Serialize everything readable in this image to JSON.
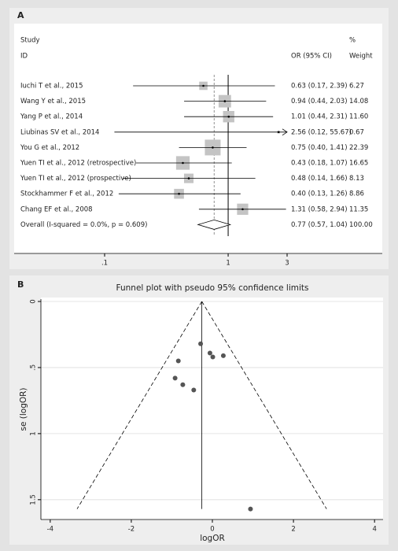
{
  "chart_data": [
    {
      "type": "forest",
      "label": "A",
      "column_headers": {
        "study": [
          "Study",
          "ID"
        ],
        "effect": "OR (95% CI)",
        "weight": [
          "%",
          "Weight"
        ]
      },
      "categories": [
        "Iuchi T et al., 2015",
        "Wang Y et al., 2015",
        "Yang P et al., 2014",
        "Liubinas SV et al., 2014",
        "You G  et al., 2012",
        "Yuen TI et al., 2012 (retrospective)",
        "Yuen TI et al., 2012 (prospective)",
        "Stockhammer F et al., 2012",
        "Chang EF et al., 2008"
      ],
      "values": [
        0.63,
        0.94,
        1.01,
        2.56,
        0.75,
        0.43,
        0.48,
        0.4,
        1.31
      ],
      "lower": [
        0.17,
        0.44,
        0.44,
        0.12,
        0.4,
        0.18,
        0.14,
        0.13,
        0.58
      ],
      "upper": [
        2.39,
        2.03,
        2.31,
        55.67,
        1.41,
        1.07,
        1.66,
        1.26,
        2.94
      ],
      "value_labels": [
        "0.63 (0.17, 2.39)",
        "0.94 (0.44, 2.03)",
        "1.01 (0.44, 2.31)",
        "2.56 (0.12, 55.67)",
        "0.75 (0.40, 1.41)",
        "0.43 (0.18, 1.07)",
        "0.48 (0.14, 1.66)",
        "0.40 (0.13, 1.26)",
        "1.31 (0.58, 2.94)"
      ],
      "weights": [
        6.27,
        14.08,
        11.6,
        0.67,
        22.39,
        16.65,
        8.13,
        8.86,
        11.35
      ],
      "weight_labels": [
        "6.27",
        "14.08",
        "11.60",
        "0.67",
        "22.39",
        "16.65",
        "8.13",
        "8.86",
        "11.35"
      ],
      "overall": {
        "label": "Overall  (I-squared = 0.0%, p = 0.609)",
        "value": 0.77,
        "lower": 0.57,
        "upper": 1.04,
        "value_label": "0.77 (0.57, 1.04)",
        "weight": 100,
        "weight_label": "100.00"
      },
      "xscale": "log",
      "xlim": [
        0.1,
        3
      ],
      "xticks": [
        {
          "value": 0.1,
          "label": ".1"
        },
        1,
        3
      ],
      "null_line": 1,
      "color": "#c4c4c4"
    },
    {
      "type": "scatter",
      "label": "B",
      "title": "Funnel plot with pseudo 95% confidence limits",
      "x_label": "logOR",
      "y_label": "se (logOR)",
      "x": [
        -0.46,
        -0.06,
        0.01,
        0.94,
        -0.29,
        -0.84,
        -0.73,
        -0.92,
        0.27
      ],
      "values": [
        0.67,
        0.39,
        0.42,
        1.57,
        0.32,
        0.45,
        0.63,
        0.58,
        0.41
      ],
      "xlim": [
        -4.23,
        4.21
      ],
      "ylim": [
        0,
        1.65
      ],
      "y_inverted": true,
      "xticks": [
        -4,
        -2,
        0,
        2,
        4
      ],
      "yticks": [
        0,
        {
          "value": 0.5,
          "label": ".5"
        },
        1,
        1.5
      ],
      "pooled_logOR": -0.26,
      "grid": true,
      "color": "#555555"
    }
  ]
}
